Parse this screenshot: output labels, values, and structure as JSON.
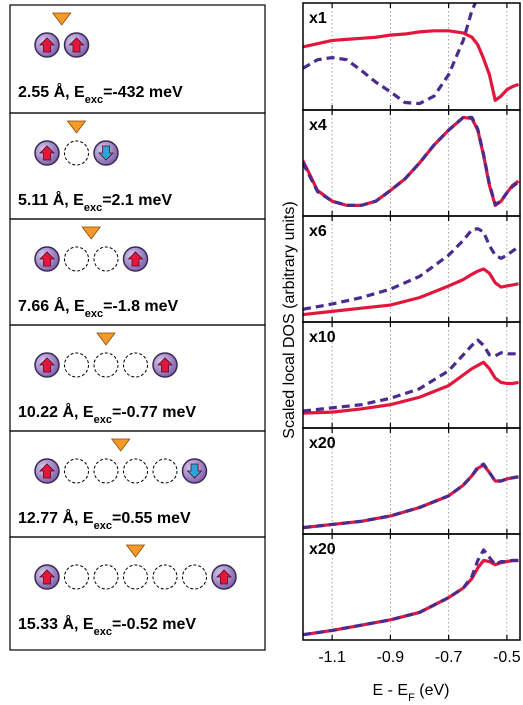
{
  "panels": [
    {
      "label": [
        "2.55 Å, E",
        "exc",
        "=-432 meV"
      ]
    },
    {
      "label": [
        "5.11 Å, E",
        "exc",
        "=2.1 meV"
      ]
    },
    {
      "label": [
        "7.66 Å, E",
        "exc",
        "=-1.8 meV"
      ]
    },
    {
      "label": [
        "10.22 Å, E",
        "exc",
        "=-0.77 meV"
      ]
    },
    {
      "label": [
        "12.77 Å, E",
        "exc",
        "=0.55 meV"
      ]
    },
    {
      "label": [
        "15.33 Å, E",
        "exc",
        "=-0.52 meV"
      ]
    }
  ],
  "y_label": "Scaled local DOS (arbitrary units)",
  "x_label": [
    "E - E",
    "F",
    " (eV)"
  ],
  "chart_data": [
    {
      "type": "line",
      "annotation": "x1",
      "xlim": [
        -1.2,
        -0.455
      ],
      "ylim": [
        0,
        1
      ],
      "xticks": [
        -1.1,
        -0.9,
        -0.7,
        -0.5
      ],
      "grid": true,
      "x": [
        -1.2,
        -1.15,
        -1.1,
        -1.05,
        -1.0,
        -0.95,
        -0.9,
        -0.85,
        -0.8,
        -0.75,
        -0.7,
        -0.65,
        -0.62,
        -0.6,
        -0.58,
        -0.56,
        -0.54,
        -0.52,
        -0.5,
        -0.48,
        -0.46
      ],
      "series": [
        {
          "color": "#e3173e",
          "linestyle": "solid",
          "values": [
            0.59,
            0.62,
            0.65,
            0.66,
            0.67,
            0.68,
            0.7,
            0.71,
            0.73,
            0.74,
            0.74,
            0.72,
            0.68,
            0.61,
            0.48,
            0.33,
            0.09,
            0.13,
            0.19,
            0.22,
            0.24
          ]
        },
        {
          "color": "#4a2b8f",
          "linestyle": "dashed",
          "values": [
            0.39,
            0.47,
            0.49,
            0.47,
            0.37,
            0.26,
            0.17,
            0.07,
            0.06,
            0.13,
            0.33,
            0.65,
            0.93,
            1.05,
            null,
            null,
            null,
            null,
            null,
            null,
            null
          ]
        }
      ]
    },
    {
      "type": "line",
      "annotation": "x4",
      "xlim": [
        -1.2,
        -0.455
      ],
      "ylim": [
        0,
        1
      ],
      "xticks": [
        -1.1,
        -0.9,
        -0.7,
        -0.5
      ],
      "grid": true,
      "x": [
        -1.2,
        -1.15,
        -1.1,
        -1.05,
        -1.0,
        -0.95,
        -0.9,
        -0.85,
        -0.8,
        -0.75,
        -0.7,
        -0.65,
        -0.62,
        -0.6,
        -0.58,
        -0.56,
        -0.54,
        -0.52,
        -0.5,
        -0.48,
        -0.46
      ],
      "series": [
        {
          "color": "#e3173e",
          "linestyle": "solid",
          "values": [
            0.52,
            0.24,
            0.14,
            0.1,
            0.1,
            0.14,
            0.24,
            0.35,
            0.5,
            0.67,
            0.81,
            0.93,
            0.92,
            0.81,
            0.57,
            0.29,
            0.1,
            0.14,
            0.22,
            0.29,
            0.33
          ]
        },
        {
          "color": "#4a2b8f",
          "linestyle": "dashed",
          "values": [
            0.5,
            0.23,
            0.14,
            0.1,
            0.1,
            0.14,
            0.24,
            0.35,
            0.5,
            0.67,
            0.81,
            0.93,
            0.93,
            0.82,
            0.58,
            0.3,
            0.11,
            0.14,
            0.22,
            0.28,
            0.32
          ]
        }
      ]
    },
    {
      "type": "line",
      "annotation": "x6",
      "xlim": [
        -1.2,
        -0.455
      ],
      "ylim": [
        0,
        1
      ],
      "xticks": [
        -1.1,
        -0.9,
        -0.7,
        -0.5
      ],
      "grid": true,
      "x": [
        -1.2,
        -1.1,
        -1.0,
        -0.9,
        -0.8,
        -0.7,
        -0.65,
        -0.62,
        -0.6,
        -0.58,
        -0.56,
        -0.54,
        -0.52,
        -0.5,
        -0.48,
        -0.46
      ],
      "series": [
        {
          "color": "#e3173e",
          "linestyle": "solid",
          "values": [
            0.07,
            0.1,
            0.13,
            0.16,
            0.23,
            0.34,
            0.4,
            0.45,
            0.48,
            0.5,
            0.46,
            0.37,
            0.33,
            0.34,
            0.35,
            0.36
          ]
        },
        {
          "color": "#4a2b8f",
          "linestyle": "dashed",
          "values": [
            0.12,
            0.17,
            0.23,
            0.31,
            0.43,
            0.63,
            0.77,
            0.87,
            0.88,
            0.85,
            0.72,
            0.63,
            0.6,
            0.63,
            0.67,
            0.71
          ]
        }
      ]
    },
    {
      "type": "line",
      "annotation": "x10",
      "xlim": [
        -1.2,
        -0.455
      ],
      "ylim": [
        0,
        1
      ],
      "xticks": [
        -1.1,
        -0.9,
        -0.7,
        -0.5
      ],
      "grid": true,
      "x": [
        -1.2,
        -1.1,
        -1.0,
        -0.9,
        -0.8,
        -0.7,
        -0.65,
        -0.62,
        -0.6,
        -0.58,
        -0.56,
        -0.54,
        -0.52,
        -0.5,
        -0.48,
        -0.46
      ],
      "series": [
        {
          "color": "#e3173e",
          "linestyle": "solid",
          "values": [
            0.14,
            0.15,
            0.18,
            0.22,
            0.29,
            0.4,
            0.5,
            0.56,
            0.59,
            0.62,
            0.56,
            0.47,
            0.43,
            0.42,
            0.42,
            0.43
          ]
        },
        {
          "color": "#4a2b8f",
          "linestyle": "dashed",
          "values": [
            0.16,
            0.19,
            0.22,
            0.28,
            0.37,
            0.54,
            0.69,
            0.78,
            0.83,
            0.78,
            0.69,
            0.68,
            0.71,
            0.7,
            0.7,
            0.7
          ]
        }
      ]
    },
    {
      "type": "line",
      "annotation": "x20",
      "xlim": [
        -1.2,
        -0.455
      ],
      "ylim": [
        0,
        1
      ],
      "xticks": [
        -1.1,
        -0.9,
        -0.7,
        -0.5
      ],
      "grid": true,
      "x": [
        -1.2,
        -1.1,
        -1.0,
        -0.9,
        -0.8,
        -0.7,
        -0.65,
        -0.62,
        -0.6,
        -0.58,
        -0.56,
        -0.54,
        -0.52,
        -0.5,
        -0.48,
        -0.46
      ],
      "series": [
        {
          "color": "#e3173e",
          "linestyle": "solid",
          "values": [
            0.06,
            0.09,
            0.12,
            0.17,
            0.25,
            0.36,
            0.46,
            0.55,
            0.62,
            0.65,
            0.58,
            0.5,
            0.5,
            0.52,
            0.53,
            0.54
          ]
        },
        {
          "color": "#4a2b8f",
          "linestyle": "dashed",
          "values": [
            0.06,
            0.09,
            0.12,
            0.17,
            0.25,
            0.36,
            0.46,
            0.55,
            0.63,
            0.66,
            0.58,
            0.5,
            0.5,
            0.52,
            0.53,
            0.54
          ]
        }
      ]
    },
    {
      "type": "line",
      "annotation": "x20",
      "xlim": [
        -1.2,
        -0.455
      ],
      "ylim": [
        0,
        1
      ],
      "xticks": [
        -1.1,
        -0.9,
        -0.7,
        -0.5
      ],
      "grid": true,
      "x": [
        -1.2,
        -1.1,
        -1.0,
        -0.9,
        -0.8,
        -0.7,
        -0.65,
        -0.62,
        -0.6,
        -0.58,
        -0.56,
        -0.54,
        -0.52,
        -0.5,
        -0.48,
        -0.46
      ],
      "series": [
        {
          "color": "#e3173e",
          "linestyle": "solid",
          "values": [
            0.05,
            0.09,
            0.14,
            0.19,
            0.26,
            0.4,
            0.49,
            0.58,
            0.68,
            0.75,
            0.74,
            0.71,
            0.73,
            0.74,
            0.75,
            0.75
          ]
        },
        {
          "color": "#4a2b8f",
          "linestyle": "dashed",
          "values": [
            0.05,
            0.09,
            0.14,
            0.19,
            0.26,
            0.4,
            0.49,
            0.6,
            0.75,
            0.85,
            0.78,
            0.71,
            0.74,
            0.74,
            0.75,
            0.75
          ]
        }
      ]
    }
  ]
}
